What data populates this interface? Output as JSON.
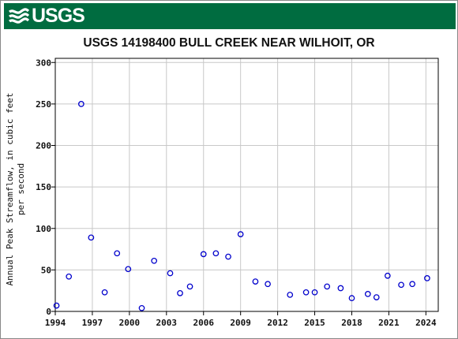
{
  "header": {
    "logo_text": "USGS",
    "logo_icon": "usgs-wave-icon",
    "banner_color": "#006c40"
  },
  "chart_data": {
    "type": "scatter",
    "title": "USGS 14198400 BULL CREEK NEAR WILHOIT, OR",
    "xlabel": "",
    "ylabel_lines": [
      "Annual Peak Streamflow, in cubic feet",
      "per second"
    ],
    "xlim": [
      1994,
      2025
    ],
    "ylim": [
      0,
      305
    ],
    "x_ticks": [
      1994,
      1997,
      2000,
      2003,
      2006,
      2009,
      2012,
      2015,
      2018,
      2021,
      2024
    ],
    "y_ticks": [
      0,
      50,
      100,
      150,
      200,
      250,
      300
    ],
    "grid": true,
    "marker": "open-circle",
    "marker_color": "#0000cc",
    "series": [
      {
        "points": [
          {
            "x": 1994.1,
            "y": 7
          },
          {
            "x": 1995.1,
            "y": 42
          },
          {
            "x": 1996.1,
            "y": 250
          },
          {
            "x": 1996.9,
            "y": 89
          },
          {
            "x": 1998.0,
            "y": 23
          },
          {
            "x": 1999.0,
            "y": 70
          },
          {
            "x": 1999.9,
            "y": 51
          },
          {
            "x": 2001.0,
            "y": 4
          },
          {
            "x": 2002.0,
            "y": 61
          },
          {
            "x": 2003.3,
            "y": 46
          },
          {
            "x": 2004.1,
            "y": 22
          },
          {
            "x": 2004.9,
            "y": 30
          },
          {
            "x": 2006.0,
            "y": 69
          },
          {
            "x": 2007.0,
            "y": 70
          },
          {
            "x": 2008.0,
            "y": 66
          },
          {
            "x": 2009.0,
            "y": 93
          },
          {
            "x": 2010.2,
            "y": 36
          },
          {
            "x": 2011.2,
            "y": 33
          },
          {
            "x": 2013.0,
            "y": 20
          },
          {
            "x": 2014.3,
            "y": 23
          },
          {
            "x": 2015.0,
            "y": 23
          },
          {
            "x": 2016.0,
            "y": 30
          },
          {
            "x": 2017.1,
            "y": 28
          },
          {
            "x": 2018.0,
            "y": 16
          },
          {
            "x": 2019.3,
            "y": 21
          },
          {
            "x": 2020.0,
            "y": 17
          },
          {
            "x": 2020.9,
            "y": 43
          },
          {
            "x": 2022.0,
            "y": 32
          },
          {
            "x": 2022.9,
            "y": 33
          },
          {
            "x": 2024.1,
            "y": 40
          }
        ]
      }
    ]
  }
}
